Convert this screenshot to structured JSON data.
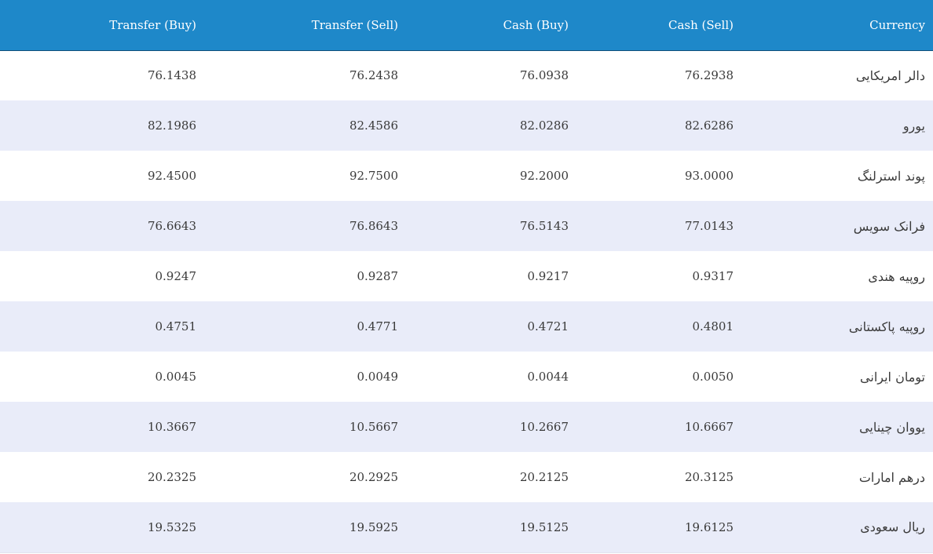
{
  "columns": {
    "transfer_buy": "Transfer (Buy)",
    "transfer_sell": "Transfer (Sell)",
    "cash_buy": "Cash (Buy)",
    "cash_sell": "Cash (Sell)",
    "currency": "Currency"
  },
  "rows": [
    {
      "transfer_buy": "76.1438",
      "transfer_sell": "76.2438",
      "cash_buy": "76.0938",
      "cash_sell": "76.2938",
      "currency": "دالر امریکایی"
    },
    {
      "transfer_buy": "82.1986",
      "transfer_sell": "82.4586",
      "cash_buy": "82.0286",
      "cash_sell": "82.6286",
      "currency": "یورو"
    },
    {
      "transfer_buy": "92.4500",
      "transfer_sell": "92.7500",
      "cash_buy": "92.2000",
      "cash_sell": "93.0000",
      "currency": "پوند استرلنگ"
    },
    {
      "transfer_buy": "76.6643",
      "transfer_sell": "76.8643",
      "cash_buy": "76.5143",
      "cash_sell": "77.0143",
      "currency": "فرانک سویس"
    },
    {
      "transfer_buy": "0.9247",
      "transfer_sell": "0.9287",
      "cash_buy": "0.9217",
      "cash_sell": "0.9317",
      "currency": "روپیه هندی"
    },
    {
      "transfer_buy": "0.4751",
      "transfer_sell": "0.4771",
      "cash_buy": "0.4721",
      "cash_sell": "0.4801",
      "currency": "روپیه پاکستانی"
    },
    {
      "transfer_buy": "0.0045",
      "transfer_sell": "0.0049",
      "cash_buy": "0.0044",
      "cash_sell": "0.0050",
      "currency": "تومان ایرانی"
    },
    {
      "transfer_buy": "10.3667",
      "transfer_sell": "10.5667",
      "cash_buy": "10.2667",
      "cash_sell": "10.6667",
      "currency": "یووان چینایی"
    },
    {
      "transfer_buy": "20.2325",
      "transfer_sell": "20.2925",
      "cash_buy": "20.2125",
      "cash_sell": "20.3125",
      "currency": "درهم امارات"
    },
    {
      "transfer_buy": "19.5325",
      "transfer_sell": "19.5925",
      "cash_buy": "19.5125",
      "cash_sell": "19.6125",
      "currency": "ریال سعودی"
    }
  ],
  "colors": {
    "header_bg": "#1e88c9",
    "row_alt_bg": "#e9ecf9",
    "header_text": "#ffffff"
  }
}
